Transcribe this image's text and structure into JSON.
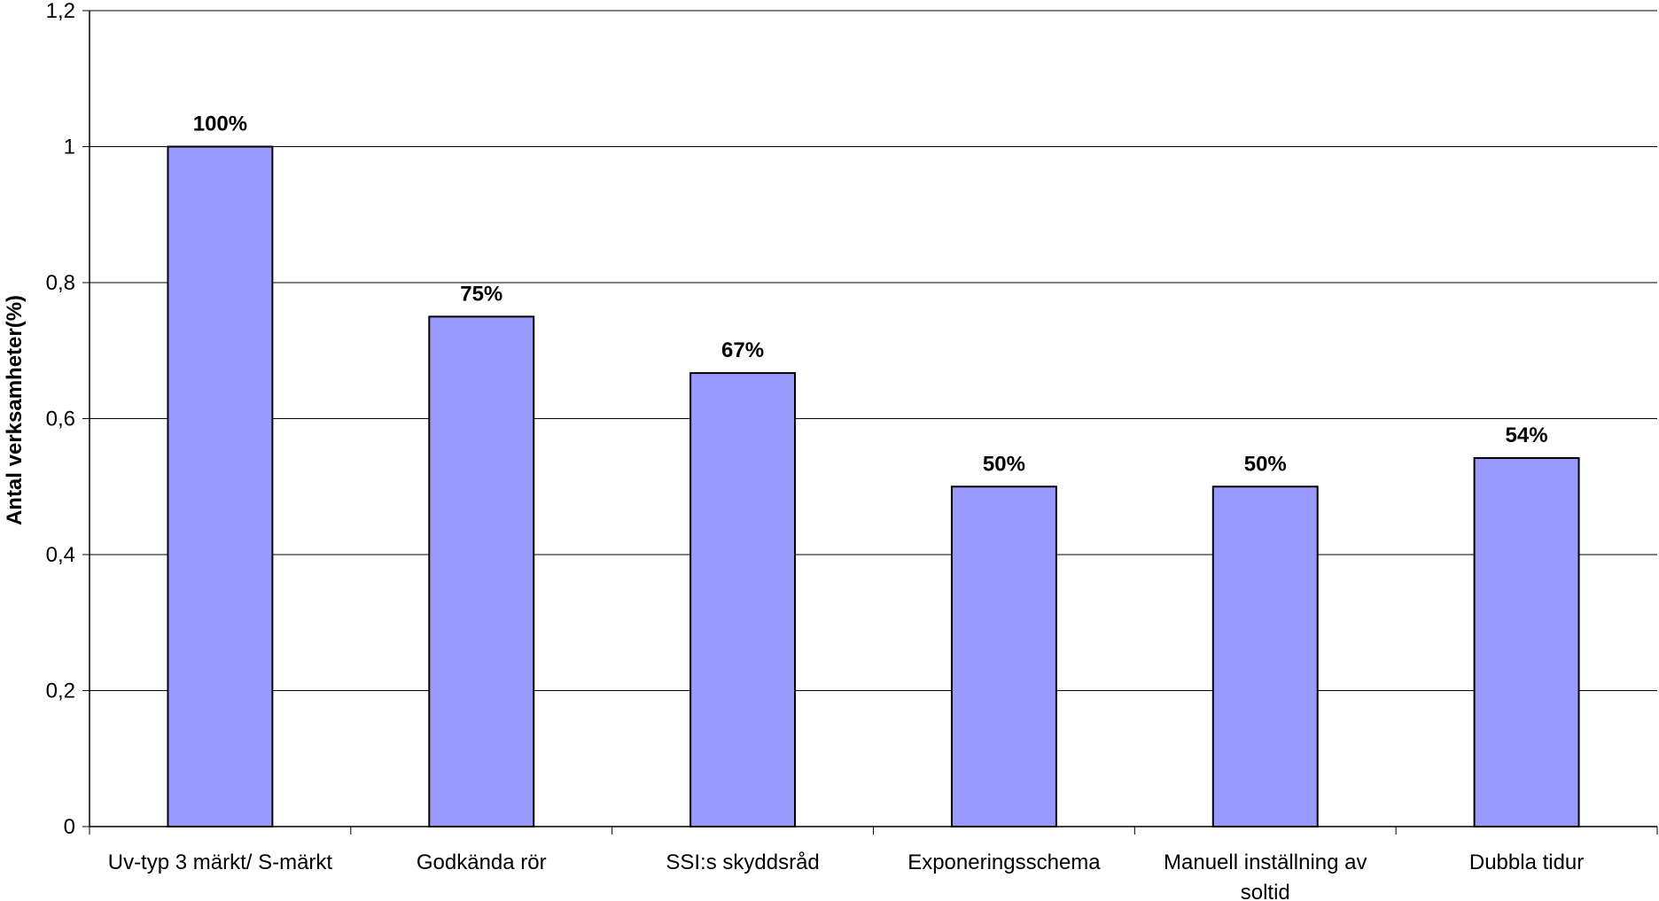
{
  "chart_data": {
    "type": "bar",
    "title": "",
    "xlabel": "",
    "ylabel": "Antal verksamheter(%)",
    "ylim": [
      0,
      1.2
    ],
    "yticks": [
      {
        "value": 0,
        "label": "0"
      },
      {
        "value": 0.2,
        "label": "0,2"
      },
      {
        "value": 0.4,
        "label": "0,4"
      },
      {
        "value": 0.6,
        "label": "0,6"
      },
      {
        "value": 0.8,
        "label": "0,8"
      },
      {
        "value": 1,
        "label": "1"
      },
      {
        "value": 1.2,
        "label": "1,2"
      }
    ],
    "categories": [
      [
        "Uv-typ 3 märkt/ S-märkt"
      ],
      [
        "Godkända rör"
      ],
      [
        "SSI:s skyddsråd"
      ],
      [
        "Exponeringsschema"
      ],
      [
        "Manuell inställning av",
        "soltid"
      ],
      [
        "Dubbla tidur"
      ]
    ],
    "values": [
      1.0,
      0.75,
      0.667,
      0.5,
      0.5,
      0.542
    ],
    "data_labels": [
      "100%",
      "75%",
      "67%",
      "50%",
      "50%",
      "54%"
    ],
    "grid": true,
    "legend": "none",
    "bar_color": "#9999ff",
    "bar_edge_color": "#000000"
  }
}
